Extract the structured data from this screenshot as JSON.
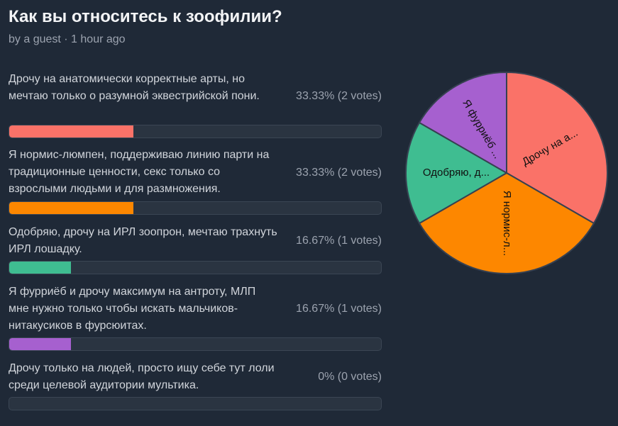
{
  "poll": {
    "title": "Как вы относитесь к зоофилии?",
    "meta": "by a guest · 1 hour ago"
  },
  "options": [
    {
      "text": "Дрочу на анатомически корректные арты, но мечтаю только о разумной эквестрийской пони.",
      "stats": "33.33% (2 votes)",
      "percent": 33.33,
      "color": "#fa7268"
    },
    {
      "text": "Я нормис-люмпен, поддерживаю линию парти на традиционные ценности, секс только со взрослыми людьми и для размножения.",
      "stats": "33.33% (2 votes)",
      "percent": 33.33,
      "color": "#fd8700"
    },
    {
      "text": "Одобряю, дрочу на ИРЛ зоопрон, мечтаю трахнуть ИРЛ лошадку.",
      "stats": "16.67% (1 votes)",
      "percent": 16.67,
      "color": "#3fbd91"
    },
    {
      "text": "Я фурриёб и дрочу максимум на антроту, МЛП мне нужно только чтобы искать мальчиков-нитакусиков в фурсюитах.",
      "stats": "16.67% (1 votes)",
      "percent": 16.67,
      "color": "#a660cf"
    },
    {
      "text": "Дрочу только на людей, просто ищу себе тут лоли среди целевой аудитории мультика.",
      "stats": "0% (0 votes)",
      "percent": 0,
      "color": "#7dd3fc"
    }
  ],
  "pie": {
    "labels": [
      "Дрочу на а...",
      "Я нормис-л...",
      "Одобряю, д...",
      "Я фурриёб ..."
    ]
  },
  "chart_data": {
    "type": "pie",
    "categories": [
      "Дрочу на а...",
      "Я нормис-л...",
      "Одобряю, д...",
      "Я фурриёб ..."
    ],
    "values": [
      2,
      2,
      1,
      1
    ],
    "colors": [
      "#fa7268",
      "#fd8700",
      "#3fbd91",
      "#a660cf"
    ]
  }
}
